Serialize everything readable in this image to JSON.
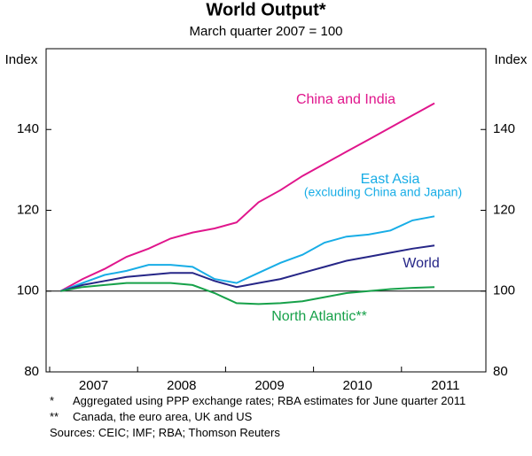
{
  "chart_data": {
    "type": "line",
    "title": "World Output*",
    "subtitle": "March quarter 2007 = 100",
    "ylabel": "Index",
    "y2label": "Index",
    "categories": [
      "2007",
      null,
      null,
      null,
      "2008",
      null,
      null,
      null,
      "2009",
      null,
      null,
      null,
      "2010",
      null,
      null,
      null,
      "2011",
      null
    ],
    "series": [
      {
        "name": "China and India",
        "color": "#e0168c",
        "values": [
          100,
          103,
          105.5,
          108.5,
          110.5,
          113,
          114.5,
          115.5,
          117,
          122,
          125,
          128.5,
          131.5,
          134.5,
          137.5,
          140.5,
          143.5,
          146.5
        ]
      },
      {
        "name": "East Asia",
        "note": "(excluding China and Japan)",
        "color": "#18ade6",
        "values": [
          100,
          102,
          104,
          105,
          106.5,
          106.5,
          106,
          103,
          102,
          104.5,
          107,
          109,
          112,
          113.5,
          114,
          115,
          117.5,
          118.5
        ]
      },
      {
        "name": "World",
        "color": "#262687",
        "values": [
          100,
          101.5,
          102.5,
          103.5,
          104,
          104.5,
          104.5,
          102.5,
          101,
          102,
          103,
          104.5,
          106,
          107.5,
          108.5,
          109.5,
          110.5,
          111.3
        ]
      },
      {
        "name": "North Atlantic**",
        "color": "#17a14a",
        "values": [
          100,
          101,
          101.5,
          102,
          102,
          102,
          101.5,
          99.5,
          97,
          96.8,
          97,
          97.5,
          98.5,
          99.5,
          100,
          100.5,
          100.8,
          101
        ]
      }
    ],
    "ylim": [
      80,
      160
    ],
    "yticks": [
      80,
      100,
      120,
      140
    ],
    "reference_line": 100,
    "footnotes": [
      {
        "marker": "*",
        "text": "Aggregated using PPP exchange rates; RBA estimates for June quarter 2011"
      },
      {
        "marker": "**",
        "text": "Canada, the euro area, UK and US"
      }
    ],
    "sources": "Sources: CEIC; IMF; RBA; Thomson Reuters"
  }
}
